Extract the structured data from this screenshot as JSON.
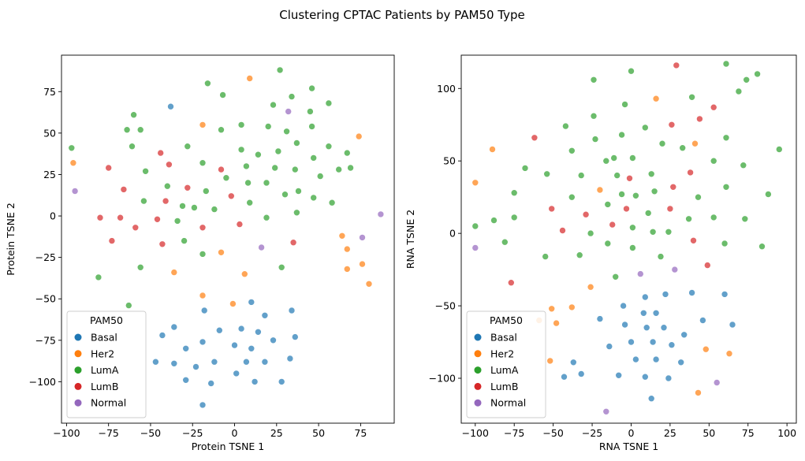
{
  "figure": {
    "title": "Clustering CPTAC Patients by PAM50 Type"
  },
  "colors": {
    "Basal": "#1f77b4",
    "Her2": "#ff7f0e",
    "LumA": "#2ca02c",
    "LumB": "#d62728",
    "Normal": "#9467bd"
  },
  "chart_data": [
    {
      "type": "scatter",
      "title": "",
      "xlabel": "Protein TSNE 1",
      "ylabel": "Protein TSNE 2",
      "xlim": [
        -103,
        95
      ],
      "ylim": [
        -125,
        97
      ],
      "xticks": [
        -100,
        -75,
        -50,
        -25,
        0,
        25,
        50,
        75
      ],
      "yticks": [
        -100,
        -75,
        -50,
        -25,
        0,
        25,
        50,
        75
      ],
      "grid": false,
      "legend": {
        "title": "PAM50",
        "placement": "lower-left",
        "entries": [
          "Basal",
          "Her2",
          "LumA",
          "LumB",
          "Normal"
        ]
      },
      "series": [
        {
          "name": "Basal",
          "points": [
            [
              -38,
              66
            ],
            [
              10,
              -52
            ],
            [
              -18,
              -57
            ],
            [
              18,
              -60
            ],
            [
              34,
              -57
            ],
            [
              -43,
              -72
            ],
            [
              -36,
              -67
            ],
            [
              -9,
              -69
            ],
            [
              4,
              -68
            ],
            [
              14,
              -70
            ],
            [
              -29,
              -80
            ],
            [
              -19,
              -76
            ],
            [
              0,
              -78
            ],
            [
              10,
              -80
            ],
            [
              23,
              -75
            ],
            [
              36,
              -73
            ],
            [
              -47,
              -88
            ],
            [
              -36,
              -89
            ],
            [
              -12,
              -88
            ],
            [
              7,
              -88
            ],
            [
              18,
              -88
            ],
            [
              33,
              -86
            ],
            [
              -29,
              -99
            ],
            [
              -23,
              -91
            ],
            [
              -14,
              -101
            ],
            [
              1,
              -95
            ],
            [
              12,
              -100
            ],
            [
              28,
              -100
            ],
            [
              -19,
              -114
            ]
          ]
        },
        {
          "name": "Her2",
          "points": [
            [
              9,
              83
            ],
            [
              -19,
              55
            ],
            [
              74,
              48
            ],
            [
              -96,
              32
            ],
            [
              64,
              -12
            ],
            [
              67,
              -20
            ],
            [
              76,
              -29
            ],
            [
              67,
              -32
            ],
            [
              80,
              -41
            ],
            [
              -8,
              -22
            ],
            [
              -36,
              -34
            ],
            [
              6,
              -35
            ],
            [
              -19,
              -48
            ],
            [
              -1,
              -53
            ]
          ]
        },
        {
          "name": "LumA",
          "points": [
            [
              27,
              88
            ],
            [
              -16,
              80
            ],
            [
              -7,
              73
            ],
            [
              46,
              77
            ],
            [
              23,
              67
            ],
            [
              34,
              72
            ],
            [
              56,
              68
            ],
            [
              -60,
              61
            ],
            [
              -64,
              52
            ],
            [
              -56,
              52
            ],
            [
              -8,
              52
            ],
            [
              4,
              55
            ],
            [
              20,
              54
            ],
            [
              31,
              51
            ],
            [
              45,
              63
            ],
            [
              46,
              54
            ],
            [
              -61,
              42
            ],
            [
              -28,
              42
            ],
            [
              4,
              40
            ],
            [
              14,
              37
            ],
            [
              26,
              39
            ],
            [
              37,
              44
            ],
            [
              56,
              42
            ],
            [
              47,
              35
            ],
            [
              67,
              38
            ],
            [
              -97,
              41
            ],
            [
              -19,
              32
            ],
            [
              7,
              30
            ],
            [
              24,
              29
            ],
            [
              36,
              28
            ],
            [
              51,
              24
            ],
            [
              62,
              28
            ],
            [
              69,
              29
            ],
            [
              -53,
              27
            ],
            [
              -5,
              23
            ],
            [
              8,
              20
            ],
            [
              19,
              20
            ],
            [
              -40,
              18
            ],
            [
              -17,
              15
            ],
            [
              30,
              13
            ],
            [
              38,
              15
            ],
            [
              47,
              11
            ],
            [
              58,
              8
            ],
            [
              -54,
              9
            ],
            [
              -31,
              6
            ],
            [
              -24,
              5
            ],
            [
              -12,
              4
            ],
            [
              9,
              8
            ],
            [
              19,
              -1
            ],
            [
              -34,
              -3
            ],
            [
              37,
              2
            ],
            [
              -30,
              -15
            ],
            [
              -19,
              -23
            ],
            [
              28,
              -31
            ],
            [
              -56,
              -31
            ],
            [
              -81,
              -37
            ],
            [
              -63,
              -54
            ]
          ]
        },
        {
          "name": "LumB",
          "points": [
            [
              -44,
              38
            ],
            [
              -39,
              31
            ],
            [
              -75,
              29
            ],
            [
              -8,
              28
            ],
            [
              -66,
              16
            ],
            [
              -28,
              17
            ],
            [
              -2,
              12
            ],
            [
              -41,
              9
            ],
            [
              -80,
              -1
            ],
            [
              -68,
              -1
            ],
            [
              -46,
              -2
            ],
            [
              -59,
              -7
            ],
            [
              -19,
              -7
            ],
            [
              3,
              -5
            ],
            [
              -73,
              -15
            ],
            [
              -43,
              -17
            ],
            [
              35,
              -16
            ]
          ]
        },
        {
          "name": "Normal",
          "points": [
            [
              32,
              63
            ],
            [
              -95,
              15
            ],
            [
              87,
              1
            ],
            [
              76,
              -13
            ],
            [
              16,
              -19
            ]
          ]
        }
      ]
    },
    {
      "type": "scatter",
      "title": "",
      "xlabel": "RNA TSNE 1",
      "ylabel": "RNA TSNE 2",
      "xlim": [
        -109,
        106
      ],
      "ylim": [
        -131,
        123
      ],
      "xticks": [
        -100,
        -75,
        -50,
        -25,
        0,
        25,
        50,
        75,
        100
      ],
      "yticks": [
        -100,
        -50,
        0,
        50,
        100
      ],
      "grid": false,
      "legend": {
        "title": "PAM50",
        "placement": "lower-left",
        "entries": [
          "Basal",
          "Her2",
          "LumA",
          "LumB",
          "Normal"
        ]
      },
      "series": [
        {
          "name": "Basal",
          "points": [
            [
              9,
              -44
            ],
            [
              -5,
              -50
            ],
            [
              22,
              -42
            ],
            [
              39,
              -41
            ],
            [
              -20,
              -59
            ],
            [
              8,
              -55
            ],
            [
              16,
              -55
            ],
            [
              60,
              -42
            ],
            [
              46,
              -60
            ],
            [
              -4,
              -63
            ],
            [
              10,
              -65
            ],
            [
              21,
              -65
            ],
            [
              65,
              -63
            ],
            [
              34,
              -70
            ],
            [
              -14,
              -78
            ],
            [
              0,
              -75
            ],
            [
              14,
              -75
            ],
            [
              26,
              -77
            ],
            [
              -37,
              -89
            ],
            [
              3,
              -87
            ],
            [
              16,
              -87
            ],
            [
              32,
              -89
            ],
            [
              -43,
              -99
            ],
            [
              -32,
              -97
            ],
            [
              -8,
              -98
            ],
            [
              9,
              -99
            ],
            [
              24,
              -100
            ],
            [
              13,
              -114
            ]
          ]
        },
        {
          "name": "Her2",
          "points": [
            [
              16,
              93
            ],
            [
              -89,
              58
            ],
            [
              41,
              62
            ],
            [
              -100,
              35
            ],
            [
              -20,
              30
            ],
            [
              -59,
              -60
            ],
            [
              -51,
              -52
            ],
            [
              -38,
              -51
            ],
            [
              -48,
              -62
            ],
            [
              -26,
              -37
            ],
            [
              -52,
              -88
            ],
            [
              48,
              -80
            ],
            [
              63,
              -83
            ],
            [
              43,
              -110
            ]
          ]
        },
        {
          "name": "LumA",
          "points": [
            [
              0,
              112
            ],
            [
              -24,
              106
            ],
            [
              61,
              117
            ],
            [
              74,
              106
            ],
            [
              81,
              110
            ],
            [
              39,
              94
            ],
            [
              -4,
              89
            ],
            [
              69,
              98
            ],
            [
              -42,
              74
            ],
            [
              -24,
              81
            ],
            [
              9,
              73
            ],
            [
              -23,
              65
            ],
            [
              -6,
              68
            ],
            [
              20,
              62
            ],
            [
              -38,
              57
            ],
            [
              1,
              52
            ],
            [
              -11,
              52
            ],
            [
              -16,
              50
            ],
            [
              -68,
              45
            ],
            [
              -54,
              41
            ],
            [
              -32,
              40
            ],
            [
              -9,
              40
            ],
            [
              13,
              41
            ],
            [
              -75,
              28
            ],
            [
              -6,
              27
            ],
            [
              -38,
              25
            ],
            [
              15,
              29
            ],
            [
              3,
              26
            ],
            [
              33,
              59
            ],
            [
              53,
              50
            ],
            [
              72,
              47
            ],
            [
              61,
              66
            ],
            [
              61,
              32
            ],
            [
              43,
              25
            ],
            [
              88,
              27
            ],
            [
              95,
              58
            ],
            [
              -100,
              5
            ],
            [
              -88,
              9
            ],
            [
              -75,
              11
            ],
            [
              -15,
              20
            ],
            [
              1,
              4
            ],
            [
              11,
              14
            ],
            [
              -26,
              0
            ],
            [
              14,
              1
            ],
            [
              24,
              1
            ],
            [
              37,
              10
            ],
            [
              53,
              11
            ],
            [
              73,
              10
            ],
            [
              -81,
              -6
            ],
            [
              -15,
              -7
            ],
            [
              1,
              -10
            ],
            [
              -33,
              -15
            ],
            [
              -55,
              -16
            ],
            [
              19,
              -16
            ],
            [
              60,
              -7
            ],
            [
              84,
              -9
            ],
            [
              -10,
              -30
            ]
          ]
        },
        {
          "name": "LumB",
          "points": [
            [
              29,
              116
            ],
            [
              -62,
              66
            ],
            [
              44,
              79
            ],
            [
              53,
              87
            ],
            [
              26,
              75
            ],
            [
              38,
              42
            ],
            [
              -1,
              38
            ],
            [
              27,
              32
            ],
            [
              -51,
              17
            ],
            [
              -3,
              17
            ],
            [
              25,
              17
            ],
            [
              -29,
              13
            ],
            [
              -12,
              6
            ],
            [
              -44,
              2
            ],
            [
              40,
              -5
            ],
            [
              49,
              -22
            ],
            [
              -77,
              -34
            ]
          ]
        },
        {
          "name": "Normal",
          "points": [
            [
              -100,
              -10
            ],
            [
              6,
              -28
            ],
            [
              28,
              -25
            ],
            [
              55,
              -103
            ],
            [
              -16,
              -123
            ]
          ]
        }
      ]
    }
  ]
}
